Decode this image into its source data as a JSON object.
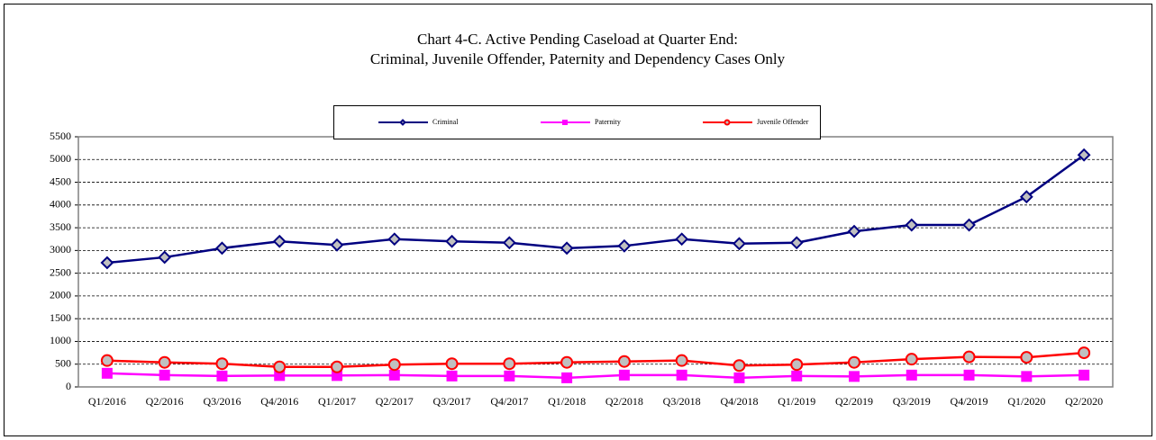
{
  "chart_data": {
    "type": "line",
    "title": "Chart 4-C. Active  Pending Caseload at Quarter End:",
    "subtitle": "Criminal, Juvenile  Offender, Paternity and Dependency Cases Only",
    "categories": [
      "Q1/2016",
      "Q2/2016",
      "Q3/2016",
      "Q4/2016",
      "Q1/2017",
      "Q2/2017",
      "Q3/2017",
      "Q4/2017",
      "Q1/2018",
      "Q2/2018",
      "Q3/2018",
      "Q4/2018",
      "Q1/2019",
      "Q2/2019",
      "Q3/2019",
      "Q4/2019",
      "Q1/2020",
      "Q2/2020"
    ],
    "series": [
      {
        "name": "Criminal",
        "color": "#000080",
        "marker": "diamond",
        "values": [
          2730,
          2850,
          3050,
          3200,
          3120,
          3250,
          3200,
          3170,
          3050,
          3100,
          3250,
          3150,
          3170,
          3420,
          3560,
          3560,
          4180,
          5100
        ]
      },
      {
        "name": "Paternity",
        "color": "#ff00ff",
        "marker": "square",
        "values": [
          300,
          260,
          240,
          250,
          250,
          260,
          240,
          240,
          200,
          260,
          260,
          200,
          240,
          230,
          260,
          260,
          230,
          260
        ]
      },
      {
        "name": "Juvenile Offender",
        "color": "#ff0000",
        "marker": "circle",
        "values": [
          580,
          540,
          510,
          440,
          440,
          490,
          510,
          510,
          540,
          560,
          580,
          470,
          490,
          540,
          610,
          660,
          650,
          750
        ]
      }
    ],
    "ylim": [
      0,
      5500
    ],
    "yticks": [
      0,
      500,
      1000,
      1500,
      2000,
      2500,
      3000,
      3500,
      4000,
      4500,
      5000,
      5500
    ],
    "grid": true
  }
}
